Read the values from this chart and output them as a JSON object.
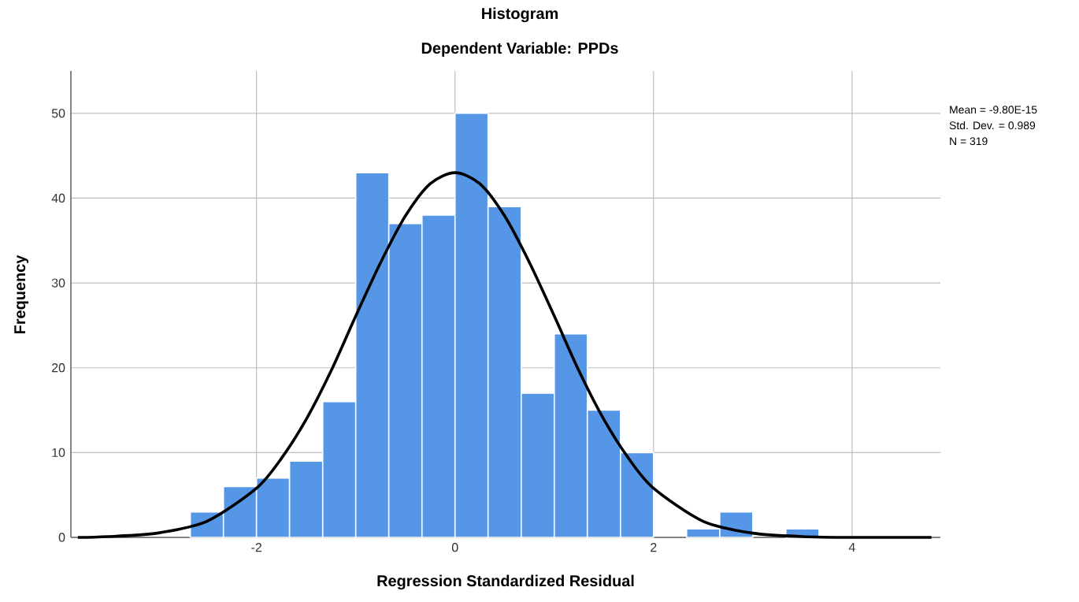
{
  "chart_data": {
    "type": "histogram",
    "title": "Histogram",
    "subtitle": "Dependent Variable: PPDs",
    "xlabel": "Regression Standardized Residual",
    "ylabel": "Frequency",
    "bins": [
      -2.667,
      -2.333,
      -2,
      -1.667,
      -1.333,
      -1,
      -0.667,
      -0.333,
      0,
      0.333,
      0.667,
      1,
      1.333,
      1.667,
      2,
      2.333,
      2.667,
      3,
      3.333,
      3.667
    ],
    "values": [
      3,
      6,
      7,
      9,
      16,
      43,
      37,
      38,
      50,
      39,
      17,
      24,
      15,
      10,
      0,
      1,
      3,
      0,
      1
    ],
    "color": "#5596e6",
    "series": [
      {
        "type": "line",
        "color": "#000000",
        "x": [
          -3.8,
          -3.5,
          -3,
          -2.5,
          -2,
          -1.75,
          -1.5,
          -1.25,
          -1,
          -0.75,
          -0.5,
          -0.25,
          0,
          0.25,
          0.5,
          0.75,
          1,
          1.25,
          1.5,
          1.75,
          2,
          2.5,
          3,
          3.5,
          4,
          4.8
        ],
        "values": [
          0,
          0.1,
          0.5,
          1.9,
          5.8,
          9.3,
          13.9,
          19.6,
          26.1,
          32.4,
          37.9,
          41.7,
          43,
          41.7,
          37.9,
          32.4,
          26.1,
          19.6,
          13.9,
          9.3,
          5.8,
          1.9,
          0.5,
          0.1,
          0,
          0
        ]
      }
    ],
    "xlim": [
      -3.87,
      4.89
    ],
    "ylim": [
      0,
      55
    ],
    "xticks": [
      -2,
      0,
      2,
      4
    ],
    "yticks": [
      0,
      10,
      20,
      30,
      40,
      50
    ],
    "grid": true,
    "annotations": [
      "Mean = -9.80E-15",
      "Std. Dev. = 0.989",
      "N = 319"
    ]
  }
}
